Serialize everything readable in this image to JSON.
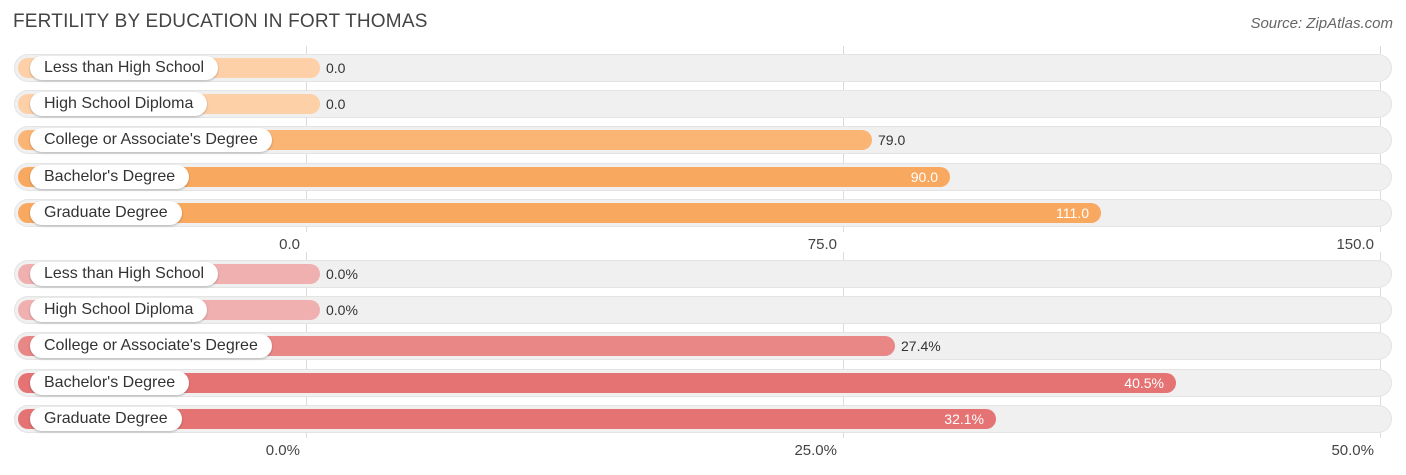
{
  "title": "FERTILITY BY EDUCATION IN FORT THOMAS",
  "source": "Source: ZipAtlas.com",
  "colors": {
    "panel1_light": "#fdd0a8",
    "panel1_main": "#f9a85f",
    "panel2_light": "#f1b0b0",
    "panel2_main": "#e57373"
  },
  "chart_data": [
    {
      "type": "bar",
      "orientation": "horizontal",
      "categories": [
        "Less than High School",
        "High School Diploma",
        "College or Associate's Degree",
        "Bachelor's Degree",
        "Graduate Degree"
      ],
      "values": [
        0.0,
        0.0,
        79.0,
        90.0,
        111.0
      ],
      "value_labels": [
        "0.0",
        "0.0",
        "79.0",
        "90.0",
        "111.0"
      ],
      "xlim": [
        0,
        150
      ],
      "ticks": [
        0,
        75,
        150
      ],
      "tick_labels": [
        "0.0",
        "75.0",
        "150.0"
      ],
      "grid": true
    },
    {
      "type": "bar",
      "orientation": "horizontal",
      "categories": [
        "Less than High School",
        "High School Diploma",
        "College or Associate's Degree",
        "Bachelor's Degree",
        "Graduate Degree"
      ],
      "values": [
        0.0,
        0.0,
        27.4,
        40.5,
        32.1
      ],
      "value_labels": [
        "0.0%",
        "0.0%",
        "27.4%",
        "40.5%",
        "32.1%"
      ],
      "xlim": [
        0,
        50
      ],
      "ticks": [
        0,
        25,
        50
      ],
      "tick_labels": [
        "0.0%",
        "25.0%",
        "50.0%"
      ],
      "grid": true
    }
  ]
}
